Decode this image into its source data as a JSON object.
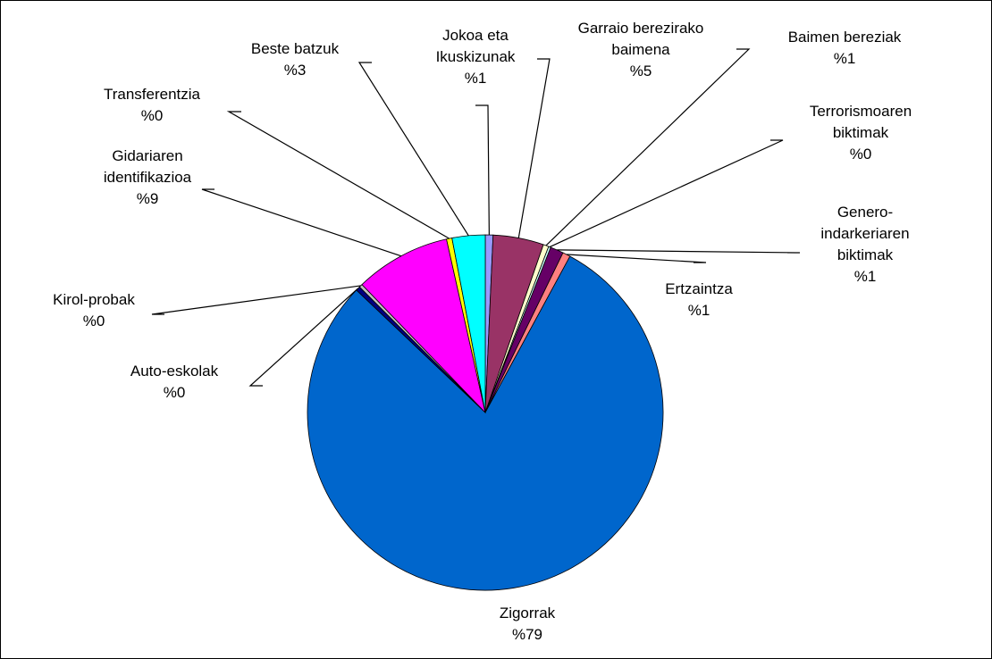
{
  "chart_data": {
    "type": "pie",
    "categories": [
      "Jokoa eta Ikuskizunak",
      "Garraio berezirako baimena",
      "Baimen bereziak",
      "Terrorismoaren biktimak",
      "Genero-indarkeriaren biktimak",
      "Ertzaintza",
      "Zigorrak",
      "Auto-eskolak",
      "Kirol-probak",
      "Gidariaren identifikazioa",
      "Transferentzia",
      "Beste batzuk"
    ],
    "values": [
      0.7,
      4.6,
      0.5,
      0.2,
      1.2,
      0.7,
      79.2,
      0.4,
      0.3,
      8.7,
      0.5,
      3
    ],
    "value_labels": [
      "%1",
      "%5",
      "%1",
      "%0",
      "%1",
      "%1",
      "%79",
      "%0",
      "%0",
      "%9",
      "%0",
      "%3"
    ],
    "colors": [
      "#9999ff",
      "#993366",
      "#ffffcc",
      "#ccffff",
      "#660066",
      "#ff8080",
      "#0066cc",
      "#000080",
      "#c0c0c0",
      "#ff00ff",
      "#ffff00",
      "#00ffff"
    ]
  }
}
